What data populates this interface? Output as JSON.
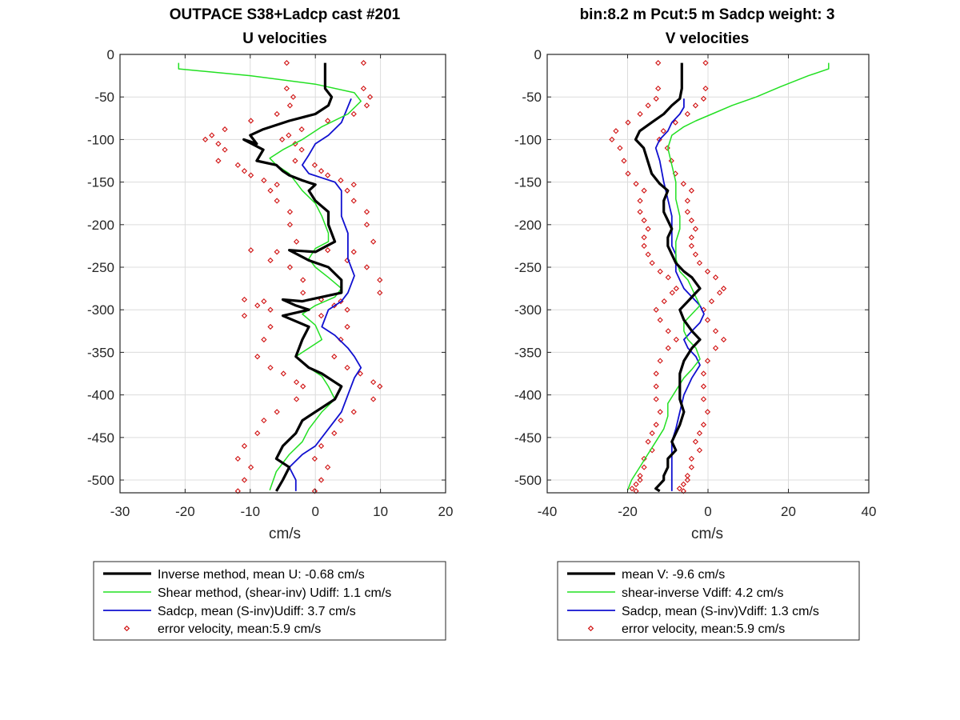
{
  "colors": {
    "inverse": "#000000",
    "shear": "#22e022",
    "sadcp": "#1010d0",
    "error": "#d01010",
    "grid": "#dcdcdc",
    "axis": "#262626"
  },
  "chart_data": [
    {
      "type": "line",
      "title": "OUTPACE S38+Ladcp cast #201",
      "subtitle": "U velocities",
      "xlabel": "cm/s",
      "ylabel": "",
      "xlim": [
        -30,
        20
      ],
      "ylim": [
        -515,
        0
      ],
      "xticks": [
        -30,
        -20,
        -10,
        0,
        10,
        20
      ],
      "yticks": [
        0,
        -50,
        -100,
        -150,
        -200,
        -250,
        -300,
        -350,
        -400,
        -450,
        -500
      ],
      "grid": true,
      "legend_position": "below",
      "legend": [
        "Inverse method, mean U:  -0.68 cm/s",
        "Shear method, (shear-inv)  Udiff:  1.1 cm/s",
        "Sadcp, mean (S-inv)Udiff: 3.7 cm/s",
        "error velocity, mean:5.9 cm/s"
      ],
      "series": [
        {
          "name": "Inverse method",
          "style": "thick",
          "x": [
            1.5,
            1.5,
            2.5,
            2,
            0,
            -4,
            -8,
            -10,
            -9,
            -11,
            -8,
            -9,
            -6,
            -5,
            -4,
            -2,
            0,
            -1,
            0,
            2,
            2,
            3,
            0,
            -4,
            -1,
            2,
            4,
            4,
            -2,
            -5,
            -3,
            -1,
            -5,
            -1,
            -2,
            -3,
            -1,
            1,
            3,
            4,
            3,
            0,
            -2,
            -3,
            -5,
            -6,
            -4,
            -5,
            -6
          ],
          "y": [
            -10,
            -40,
            -50,
            -60,
            -70,
            -78,
            -88,
            -95,
            -105,
            -100,
            -112,
            -125,
            -130,
            -137,
            -142,
            -148,
            -153,
            -160,
            -172,
            -185,
            -200,
            -220,
            -232,
            -230,
            -242,
            -250,
            -265,
            -280,
            -290,
            -288,
            -295,
            -300,
            -307,
            -320,
            -335,
            -355,
            -368,
            -375,
            -385,
            -390,
            -405,
            -420,
            -430,
            -445,
            -460,
            -475,
            -485,
            -500,
            -513
          ]
        },
        {
          "name": "Shear method",
          "style": "thin",
          "x": [
            -21,
            -21,
            -10,
            0,
            6,
            7,
            5,
            1,
            -2,
            -5,
            -7,
            -6,
            -4,
            -3,
            -2,
            0,
            1,
            2,
            2,
            0,
            -1,
            0,
            2,
            4,
            3,
            0,
            -2,
            0,
            1,
            -1,
            -3,
            -1,
            1,
            2,
            3,
            1,
            -1,
            -2,
            -4,
            -6,
            -7
          ],
          "y": [
            -10,
            -17,
            -25,
            -35,
            -45,
            -55,
            -70,
            -85,
            -100,
            -112,
            -122,
            -130,
            -140,
            -150,
            -160,
            -175,
            -190,
            -210,
            -220,
            -228,
            -240,
            -250,
            -262,
            -275,
            -285,
            -295,
            -305,
            -318,
            -335,
            -345,
            -355,
            -368,
            -378,
            -390,
            -405,
            -420,
            -440,
            -455,
            -470,
            -490,
            -512
          ]
        },
        {
          "name": "Sadcp",
          "style": "thin",
          "x": [
            5.5,
            4,
            2,
            0,
            -1,
            -2,
            -1,
            1,
            3,
            4,
            4,
            5,
            5,
            6,
            5,
            4,
            2,
            1,
            3,
            5,
            6,
            7,
            6,
            5,
            4,
            2,
            0,
            -2,
            -4,
            -3,
            -3
          ],
          "y": [
            -52,
            -80,
            -95,
            -105,
            -118,
            -130,
            -140,
            -145,
            -150,
            -160,
            -190,
            -210,
            -240,
            -260,
            -280,
            -290,
            -300,
            -320,
            -330,
            -345,
            -355,
            -368,
            -380,
            -400,
            -420,
            -440,
            -460,
            -470,
            -485,
            -500,
            -513
          ]
        },
        {
          "name": "error velocity",
          "style": "markers",
          "mirror_of": "Inverse method",
          "half_width": 5.9
        }
      ]
    },
    {
      "type": "line",
      "title": "bin:8.2 m  Pcut:5 m  Sadcp weight: 3",
      "subtitle": "V velocities",
      "xlabel": "cm/s",
      "ylabel": "",
      "xlim": [
        -40,
        40
      ],
      "ylim": [
        -515,
        0
      ],
      "xticks": [
        -40,
        -20,
        0,
        20,
        40
      ],
      "yticks": [
        0,
        -50,
        -100,
        -150,
        -200,
        -250,
        -300,
        -350,
        -400,
        -450,
        -500
      ],
      "grid": true,
      "legend_position": "below",
      "legend": [
        "mean V:  -9.6 cm/s",
        "shear-inverse Vdiff:  4.2 cm/s",
        "Sadcp, mean (S-inv)Vdiff: 1.3 cm/s",
        "error velocity, mean:5.9 cm/s"
      ],
      "series": [
        {
          "name": "mean V",
          "style": "thick",
          "x": [
            -6.5,
            -6.5,
            -7,
            -9,
            -11,
            -14,
            -17,
            -18,
            -16,
            -15,
            -14,
            -12,
            -10,
            -11,
            -11,
            -10,
            -9,
            -10,
            -10,
            -9,
            -8,
            -6,
            -4,
            -2,
            -3,
            -5,
            -7,
            -6,
            -4,
            -2,
            -4,
            -6,
            -7,
            -7,
            -7,
            -6,
            -7,
            -8,
            -9,
            -8,
            -10,
            -10,
            -11,
            -11,
            -12,
            -13,
            -12
          ],
          "y": [
            -10,
            -40,
            -52,
            -60,
            -70,
            -80,
            -90,
            -100,
            -110,
            -125,
            -140,
            -152,
            -160,
            -172,
            -185,
            -195,
            -205,
            -215,
            -225,
            -235,
            -245,
            -255,
            -262,
            -275,
            -280,
            -290,
            -300,
            -312,
            -325,
            -335,
            -345,
            -360,
            -375,
            -390,
            -405,
            -420,
            -435,
            -445,
            -455,
            -465,
            -475,
            -485,
            -495,
            -500,
            -505,
            -510,
            -513
          ]
        },
        {
          "name": "shear-inverse Vdiff",
          "style": "thin",
          "x": [
            30,
            30,
            25,
            18,
            12,
            6,
            1,
            -3,
            -6,
            -9,
            -10,
            -9,
            -8,
            -8,
            -7,
            -7,
            -8,
            -8,
            -7,
            -5,
            -4,
            -3,
            -2,
            -4,
            -6,
            -6,
            -5,
            -3,
            -2,
            -4,
            -6,
            -8,
            -10,
            -10,
            -11,
            -13,
            -15,
            -17,
            -19,
            -20
          ],
          "y": [
            -10,
            -17,
            -25,
            -38,
            -50,
            -60,
            -70,
            -78,
            -85,
            -95,
            -110,
            -130,
            -150,
            -170,
            -190,
            -205,
            -220,
            -240,
            -255,
            -265,
            -275,
            -285,
            -295,
            -305,
            -315,
            -325,
            -335,
            -345,
            -358,
            -370,
            -380,
            -395,
            -410,
            -425,
            -440,
            -455,
            -470,
            -485,
            -500,
            -512
          ]
        },
        {
          "name": "Sadcp, mean (S-inv)Vdiff",
          "style": "thin",
          "x": [
            -6,
            -6,
            -7,
            -9,
            -10,
            -12,
            -13,
            -12,
            -11,
            -10,
            -9,
            -9,
            -9,
            -8,
            -8,
            -8,
            -7,
            -6,
            -4,
            -2,
            -1,
            -2,
            -4,
            -6,
            -5,
            -3,
            -2,
            -4,
            -6,
            -7,
            -8,
            -9,
            -9,
            -9,
            -9,
            -9
          ],
          "y": [
            -52,
            -62,
            -70,
            -80,
            -90,
            -100,
            -110,
            -125,
            -150,
            -170,
            -190,
            -210,
            -225,
            -235,
            -245,
            -255,
            -265,
            -275,
            -285,
            -295,
            -305,
            -315,
            -325,
            -335,
            -345,
            -355,
            -365,
            -380,
            -400,
            -420,
            -440,
            -455,
            -470,
            -485,
            -500,
            -513
          ]
        },
        {
          "name": "error velocity",
          "style": "markers",
          "mirror_of": "mean V",
          "half_width": 5.9
        }
      ]
    }
  ]
}
